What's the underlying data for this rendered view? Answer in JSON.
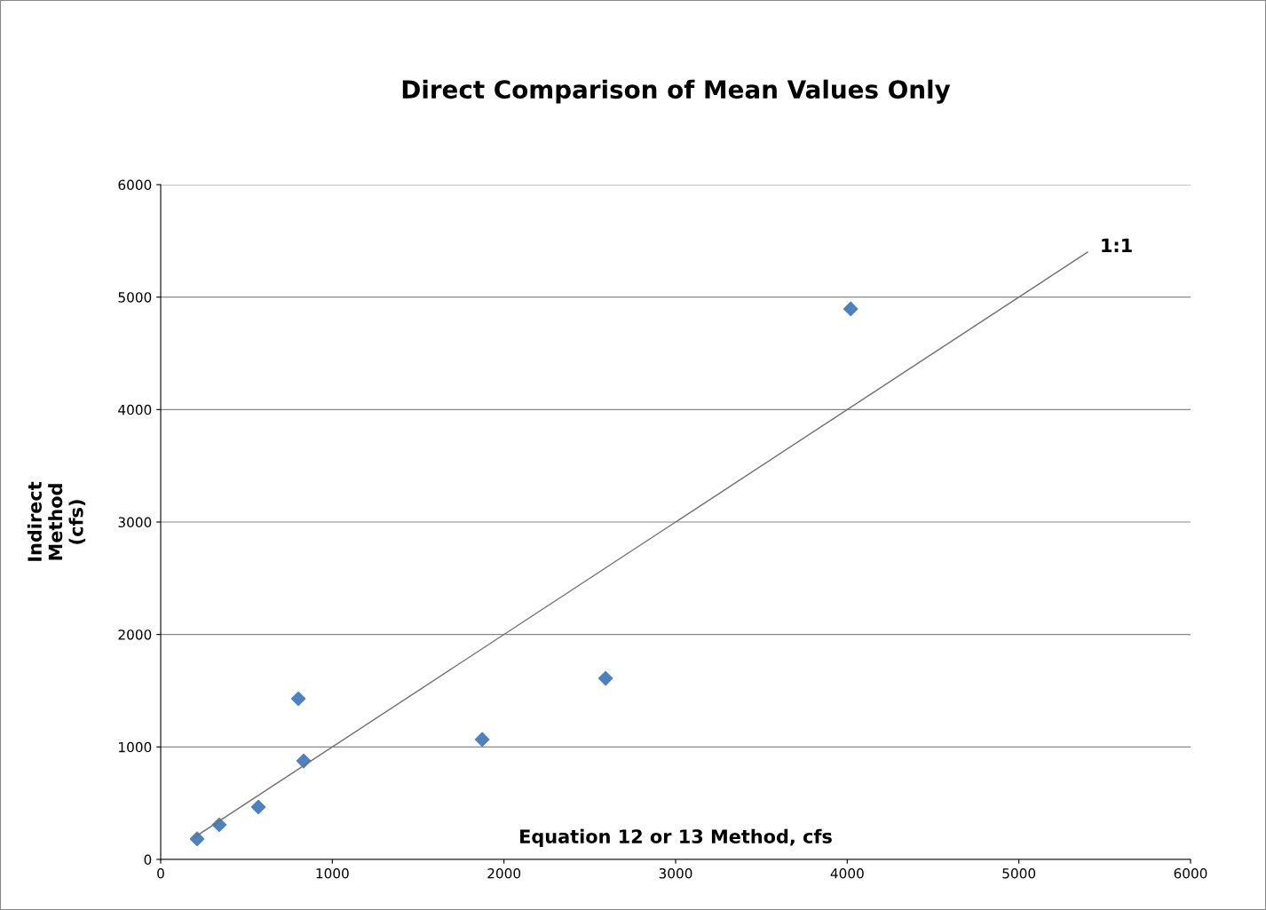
{
  "chart_data": {
    "type": "scatter",
    "title": "Direct Comparison of Mean Values Only",
    "xlabel": "Equation 12 or 13 Method, cfs",
    "ylabel": "Indirect\nMethod\n(cfs)",
    "series": [
      {
        "color": "#4f81bd",
        "marker": "diamond",
        "x": [
          212,
          341,
          569,
          802,
          833,
          1873,
          2592,
          4020
        ],
        "values": [
          182,
          308,
          466,
          1429,
          876,
          1066,
          1610,
          4895
        ]
      },
      {
        "type": "line",
        "color": "#707070",
        "marker": "none",
        "x": [
          200,
          5400
        ],
        "values": [
          200,
          5400
        ]
      }
    ],
    "annotations": [
      {
        "text": "1:1",
        "x": 5400,
        "y": 5400
      }
    ],
    "xlim": [
      0,
      6000
    ],
    "ylim": [
      0,
      6000
    ],
    "xticks": [
      0,
      1000,
      2000,
      3000,
      4000,
      5000,
      6000
    ],
    "yticks": [
      0,
      1000,
      2000,
      3000,
      4000,
      5000,
      6000
    ],
    "grid": "y",
    "legend": false
  }
}
